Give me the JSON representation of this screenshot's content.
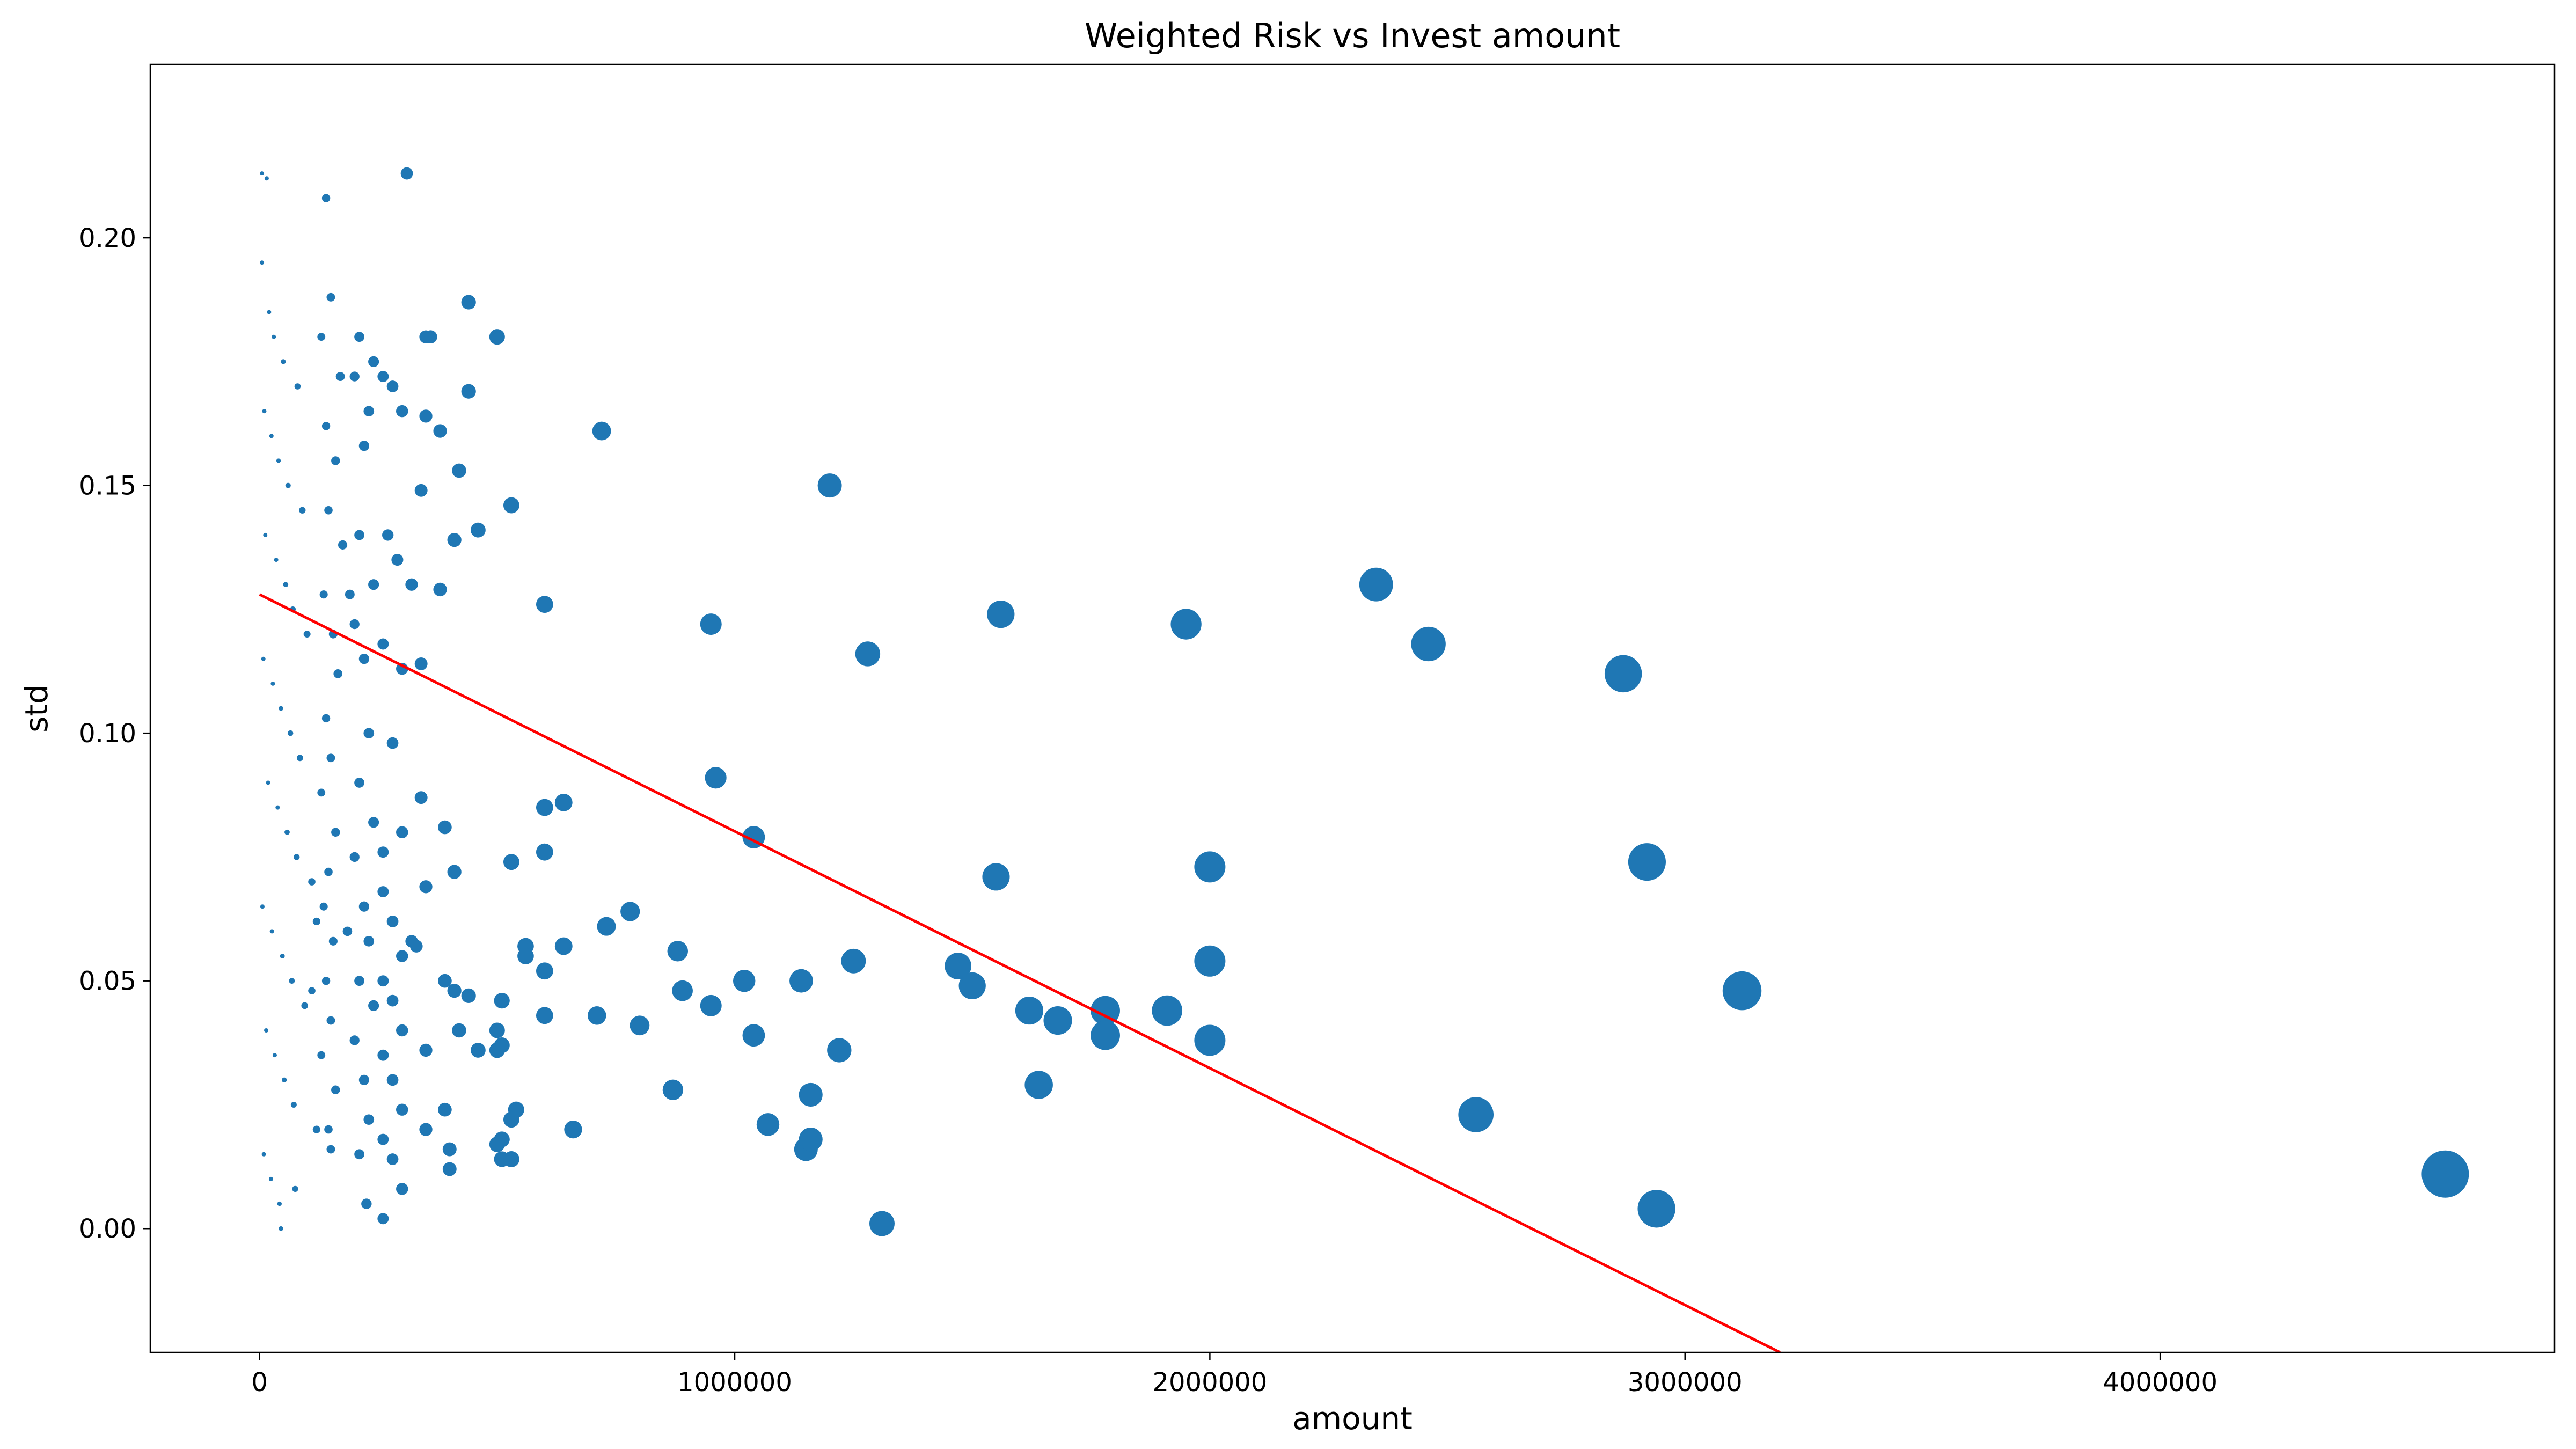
{
  "chart_data": {
    "type": "scatter",
    "title": "Weighted Risk vs Invest amount",
    "xlabel": "amount",
    "ylabel": "std",
    "xlim": [
      -230000,
      4830000
    ],
    "ylim": [
      -0.025,
      0.235
    ],
    "x_ticks": [
      0,
      1000000,
      2000000,
      3000000,
      4000000
    ],
    "x_tick_labels": [
      "0",
      "1000000",
      "2000000",
      "3000000",
      "4000000"
    ],
    "y_ticks": [
      0.0,
      0.05,
      0.1,
      0.15,
      0.2
    ],
    "y_tick_labels": [
      "0.00",
      "0.05",
      "0.10",
      "0.15",
      "0.20"
    ],
    "grid": false,
    "marker_color": "#1f77b4",
    "trend_color": "#ff0000",
    "size_encoding": "marker area proportional to amount",
    "series": [
      {
        "type": "scatter",
        "points": [
          [
            5000,
            0.213
          ],
          [
            15000,
            0.212
          ],
          [
            310000,
            0.213
          ],
          [
            140000,
            0.208
          ],
          [
            5000,
            0.195
          ],
          [
            20000,
            0.185
          ],
          [
            30000,
            0.18
          ],
          [
            50000,
            0.175
          ],
          [
            80000,
            0.17
          ],
          [
            10000,
            0.165
          ],
          [
            25000,
            0.16
          ],
          [
            40000,
            0.155
          ],
          [
            60000,
            0.15
          ],
          [
            90000,
            0.145
          ],
          [
            12000,
            0.14
          ],
          [
            35000,
            0.135
          ],
          [
            55000,
            0.13
          ],
          [
            70000,
            0.125
          ],
          [
            100000,
            0.12
          ],
          [
            8000,
            0.115
          ],
          [
            28000,
            0.11
          ],
          [
            45000,
            0.105
          ],
          [
            65000,
            0.1
          ],
          [
            85000,
            0.095
          ],
          [
            18000,
            0.09
          ],
          [
            38000,
            0.085
          ],
          [
            58000,
            0.08
          ],
          [
            78000,
            0.075
          ],
          [
            110000,
            0.07
          ],
          [
            6000,
            0.065
          ],
          [
            26000,
            0.06
          ],
          [
            48000,
            0.055
          ],
          [
            68000,
            0.05
          ],
          [
            95000,
            0.045
          ],
          [
            14000,
            0.04
          ],
          [
            32000,
            0.035
          ],
          [
            52000,
            0.03
          ],
          [
            72000,
            0.025
          ],
          [
            120000,
            0.02
          ],
          [
            9000,
            0.015
          ],
          [
            24000,
            0.01
          ],
          [
            42000,
            0.005
          ],
          [
            45000,
            0.0
          ],
          [
            75000,
            0.008
          ],
          [
            150000,
            0.188
          ],
          [
            130000,
            0.18
          ],
          [
            170000,
            0.172
          ],
          [
            140000,
            0.162
          ],
          [
            160000,
            0.155
          ],
          [
            145000,
            0.145
          ],
          [
            175000,
            0.138
          ],
          [
            135000,
            0.128
          ],
          [
            155000,
            0.12
          ],
          [
            165000,
            0.112
          ],
          [
            140000,
            0.103
          ],
          [
            150000,
            0.095
          ],
          [
            130000,
            0.088
          ],
          [
            160000,
            0.08
          ],
          [
            145000,
            0.072
          ],
          [
            135000,
            0.065
          ],
          [
            155000,
            0.058
          ],
          [
            140000,
            0.05
          ],
          [
            150000,
            0.042
          ],
          [
            130000,
            0.035
          ],
          [
            160000,
            0.028
          ],
          [
            145000,
            0.02
          ],
          [
            150000,
            0.016
          ],
          [
            120000,
            0.062
          ],
          [
            110000,
            0.048
          ],
          [
            210000,
            0.18
          ],
          [
            240000,
            0.175
          ],
          [
            220000,
            0.158
          ],
          [
            200000,
            0.172
          ],
          [
            230000,
            0.165
          ],
          [
            210000,
            0.14
          ],
          [
            240000,
            0.13
          ],
          [
            200000,
            0.122
          ],
          [
            220000,
            0.115
          ],
          [
            230000,
            0.1
          ],
          [
            210000,
            0.09
          ],
          [
            240000,
            0.082
          ],
          [
            200000,
            0.075
          ],
          [
            220000,
            0.065
          ],
          [
            230000,
            0.058
          ],
          [
            210000,
            0.05
          ],
          [
            240000,
            0.045
          ],
          [
            200000,
            0.038
          ],
          [
            220000,
            0.03
          ],
          [
            230000,
            0.022
          ],
          [
            210000,
            0.015
          ],
          [
            225000,
            0.005
          ],
          [
            190000,
            0.128
          ],
          [
            185000,
            0.06
          ],
          [
            260000,
            0.172
          ],
          [
            280000,
            0.17
          ],
          [
            300000,
            0.165
          ],
          [
            270000,
            0.14
          ],
          [
            290000,
            0.135
          ],
          [
            320000,
            0.13
          ],
          [
            260000,
            0.118
          ],
          [
            300000,
            0.113
          ],
          [
            280000,
            0.098
          ],
          [
            260000,
            0.076
          ],
          [
            300000,
            0.08
          ],
          [
            260000,
            0.068
          ],
          [
            280000,
            0.062
          ],
          [
            300000,
            0.055
          ],
          [
            320000,
            0.058
          ],
          [
            260000,
            0.05
          ],
          [
            280000,
            0.046
          ],
          [
            300000,
            0.04
          ],
          [
            260000,
            0.035
          ],
          [
            280000,
            0.03
          ],
          [
            300000,
            0.024
          ],
          [
            260000,
            0.018
          ],
          [
            280000,
            0.014
          ],
          [
            260000,
            0.002
          ],
          [
            300000,
            0.008
          ],
          [
            350000,
            0.18
          ],
          [
            360000,
            0.18
          ],
          [
            440000,
            0.187
          ],
          [
            500000,
            0.18
          ],
          [
            350000,
            0.164
          ],
          [
            380000,
            0.161
          ],
          [
            440000,
            0.169
          ],
          [
            340000,
            0.149
          ],
          [
            420000,
            0.153
          ],
          [
            460000,
            0.141
          ],
          [
            410000,
            0.139
          ],
          [
            380000,
            0.129
          ],
          [
            340000,
            0.114
          ],
          [
            390000,
            0.081
          ],
          [
            340000,
            0.087
          ],
          [
            410000,
            0.072
          ],
          [
            350000,
            0.069
          ],
          [
            330000,
            0.057
          ],
          [
            390000,
            0.05
          ],
          [
            410000,
            0.048
          ],
          [
            440000,
            0.047
          ],
          [
            420000,
            0.04
          ],
          [
            460000,
            0.036
          ],
          [
            350000,
            0.036
          ],
          [
            390000,
            0.024
          ],
          [
            350000,
            0.02
          ],
          [
            400000,
            0.016
          ],
          [
            400000,
            0.012
          ],
          [
            500000,
            0.04
          ],
          [
            500000,
            0.036
          ],
          [
            510000,
            0.046
          ],
          [
            510000,
            0.037
          ],
          [
            510000,
            0.018
          ],
          [
            500000,
            0.017
          ],
          [
            510000,
            0.014
          ],
          [
            530000,
            0.146
          ],
          [
            530000,
            0.074
          ],
          [
            540000,
            0.024
          ],
          [
            530000,
            0.022
          ],
          [
            530000,
            0.014
          ],
          [
            560000,
            0.057
          ],
          [
            560000,
            0.055
          ],
          [
            600000,
            0.126
          ],
          [
            600000,
            0.085
          ],
          [
            600000,
            0.076
          ],
          [
            600000,
            0.052
          ],
          [
            600000,
            0.043
          ],
          [
            640000,
            0.086
          ],
          [
            640000,
            0.057
          ],
          [
            660000,
            0.02
          ],
          [
            710000,
            0.043
          ],
          [
            720000,
            0.161
          ],
          [
            730000,
            0.061
          ],
          [
            780000,
            0.064
          ],
          [
            800000,
            0.041
          ],
          [
            870000,
            0.028
          ],
          [
            880000,
            0.056
          ],
          [
            890000,
            0.048
          ],
          [
            950000,
            0.122
          ],
          [
            950000,
            0.045
          ],
          [
            960000,
            0.091
          ],
          [
            1020000,
            0.05
          ],
          [
            1040000,
            0.079
          ],
          [
            1040000,
            0.039
          ],
          [
            1070000,
            0.021
          ],
          [
            1140000,
            0.05
          ],
          [
            1150000,
            0.016
          ],
          [
            1160000,
            0.027
          ],
          [
            1160000,
            0.018
          ],
          [
            1200000,
            0.15
          ],
          [
            1220000,
            0.036
          ],
          [
            1250000,
            0.054
          ],
          [
            1280000,
            0.116
          ],
          [
            1310000,
            0.001
          ],
          [
            1470000,
            0.053
          ],
          [
            1500000,
            0.049
          ],
          [
            1550000,
            0.071
          ],
          [
            1560000,
            0.124
          ],
          [
            1620000,
            0.044
          ],
          [
            1640000,
            0.029
          ],
          [
            1680000,
            0.042
          ],
          [
            1780000,
            0.044
          ],
          [
            1780000,
            0.039
          ],
          [
            1910000,
            0.044
          ],
          [
            1950000,
            0.122
          ],
          [
            2000000,
            0.073
          ],
          [
            2000000,
            0.054
          ],
          [
            2000000,
            0.038
          ],
          [
            2350000,
            0.13
          ],
          [
            2460000,
            0.118
          ],
          [
            2560000,
            0.023
          ],
          [
            2870000,
            0.112
          ],
          [
            2920000,
            0.074
          ],
          [
            2940000,
            0.004
          ],
          [
            3120000,
            0.048
          ],
          [
            4600000,
            0.011
          ]
        ]
      },
      {
        "type": "line",
        "points": [
          [
            0,
            0.128
          ],
          [
            3200000,
            -0.025
          ]
        ]
      }
    ]
  }
}
